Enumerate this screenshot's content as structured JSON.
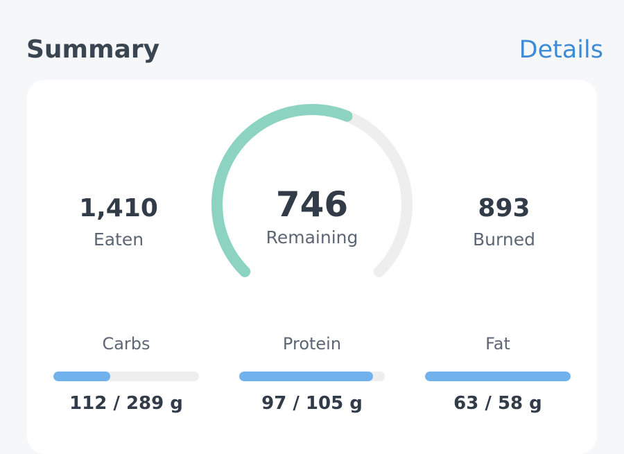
{
  "header": {
    "title": "Summary",
    "details_link": "Details"
  },
  "summary": {
    "eaten": {
      "value": "1,410",
      "label": "Eaten"
    },
    "remaining": {
      "value": "746",
      "label": "Remaining"
    },
    "burned": {
      "value": "893",
      "label": "Burned"
    },
    "gauge_progress": 0.58
  },
  "macros": [
    {
      "label": "Carbs",
      "value_text": "112 / 289 g",
      "progress": 0.39
    },
    {
      "label": "Protein",
      "value_text": "97 / 105 g",
      "progress": 0.92
    },
    {
      "label": "Fat",
      "value_text": "63 / 58 g",
      "progress": 1.0
    }
  ],
  "colors": {
    "accent": "#3d8bd4",
    "gauge_fill": "#8dd3c1",
    "gauge_track": "#eeeeee",
    "bar_fill": "#72b2ec",
    "bar_track": "#eeeeee"
  }
}
